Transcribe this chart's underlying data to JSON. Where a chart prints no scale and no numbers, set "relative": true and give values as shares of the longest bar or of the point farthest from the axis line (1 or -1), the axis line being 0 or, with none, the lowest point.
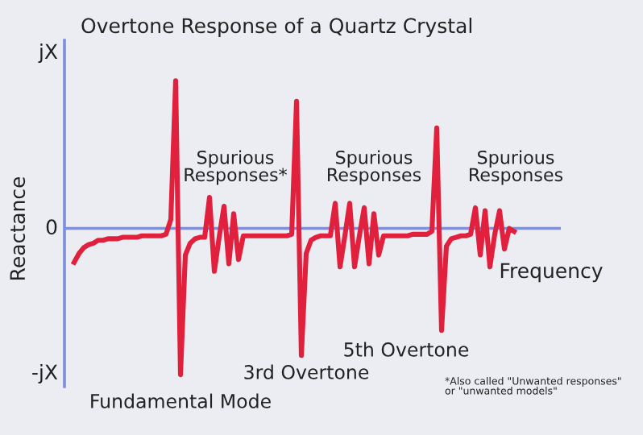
{
  "chart_data": {
    "type": "line",
    "relative": true,
    "title": "Overtone Response of a Quartz Crystal",
    "xlabel": "Frequency",
    "ylabel": "Reactance",
    "categories": [
      null,
      null,
      null,
      null,
      null,
      null,
      null,
      null,
      null,
      null,
      null,
      null,
      null,
      null,
      null,
      null,
      null,
      null,
      null,
      null,
      null,
      null,
      null,
      null,
      null,
      null,
      null,
      null,
      null,
      null,
      null,
      null,
      null,
      null,
      null,
      null,
      null,
      null,
      null,
      null,
      null,
      null,
      null,
      null,
      null,
      null,
      null,
      null,
      null,
      null,
      null,
      null,
      null,
      null,
      null,
      null,
      null,
      null,
      null,
      null,
      null,
      null,
      null,
      null,
      null,
      null,
      null,
      null,
      null,
      null,
      null,
      null,
      null,
      null,
      null,
      null,
      null,
      null,
      null,
      null,
      null,
      null,
      null,
      null,
      null,
      null,
      null,
      null,
      null,
      null,
      null,
      null
    ],
    "series": [
      {
        "color": "#e0203c",
        "values": [
          -0.23,
          -0.17,
          -0.13,
          -0.11,
          -0.1,
          -0.08,
          -0.08,
          -0.07,
          -0.07,
          -0.07,
          -0.06,
          -0.06,
          -0.06,
          -0.06,
          -0.05,
          -0.05,
          -0.05,
          -0.05,
          -0.05,
          -0.04,
          0.06,
          1,
          -0.99,
          -0.18,
          -0.1,
          -0.07,
          -0.06,
          -0.06,
          0.21,
          -0.29,
          -0.06,
          0.15,
          -0.24,
          0.1,
          -0.21,
          -0.05,
          -0.05,
          -0.05,
          -0.05,
          -0.05,
          -0.05,
          -0.05,
          -0.05,
          -0.05,
          -0.05,
          -0.04,
          0.86,
          -0.86,
          -0.17,
          -0.08,
          -0.06,
          -0.05,
          -0.05,
          -0.05,
          0.17,
          -0.26,
          -0.05,
          0.17,
          -0.26,
          -0.05,
          0.14,
          -0.24,
          0.1,
          -0.18,
          -0.05,
          -0.05,
          -0.05,
          -0.05,
          -0.05,
          -0.05,
          -0.04,
          -0.04,
          -0.04,
          -0.04,
          -0.02,
          0.68,
          -0.69,
          -0.12,
          -0.07,
          -0.06,
          -0.05,
          -0.05,
          -0.04,
          0.14,
          -0.18,
          0.12,
          -0.26,
          -0.04,
          0.12,
          -0.14,
          0.0,
          -0.02
        ]
      }
    ],
    "tick_labels": false,
    "ref_lines": [
      {
        "axis": "y",
        "value": 0,
        "color": "#7f90d8"
      }
    ],
    "annotations": [
      "jX",
      "0",
      "-jX",
      "Fundamental Mode",
      "Spurious\nResponses*",
      "3rd Overtone",
      "Spurious\nResponses",
      "Spurious\nResponses",
      "5th Overtone",
      "*Also called \"Unwanted responses\"\nor \"unwanted models\""
    ]
  }
}
